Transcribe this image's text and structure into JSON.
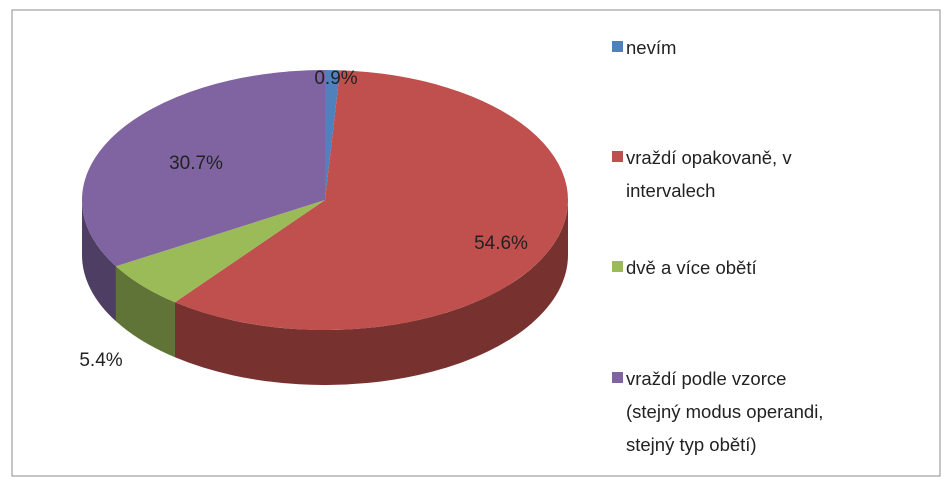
{
  "chart_data": {
    "type": "pie",
    "categories": [
      "nevím",
      "vraždí opakovaně, v intervalech",
      "dvě a více obětí",
      "vraždí podle vzorce (stejný modus operandi, stejný typ obětí)"
    ],
    "values": [
      0.9,
      54.6,
      5.4,
      30.7
    ],
    "value_labels": [
      "0.9%",
      "54.6%",
      "5.4%",
      "30.7%"
    ],
    "colors": [
      "#4f81bd",
      "#c0504d",
      "#9bbb59",
      "#8064a2"
    ],
    "legend": "right"
  }
}
